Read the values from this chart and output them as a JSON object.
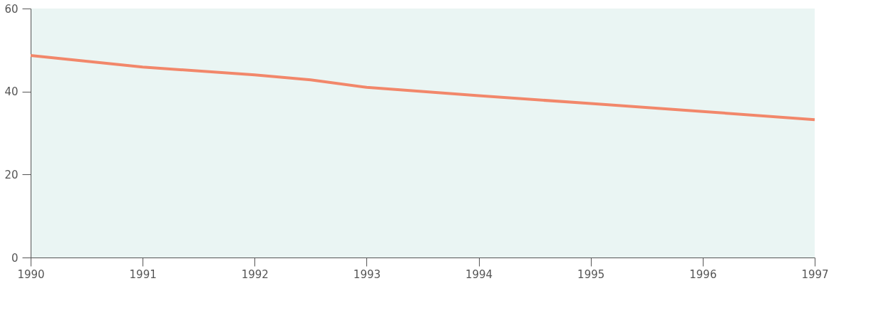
{
  "chart_data": {
    "type": "line",
    "x": [
      1990,
      1991,
      1992,
      1992.5,
      1993,
      1994,
      1995,
      1996,
      1997
    ],
    "series": [
      {
        "color": "#f2876a",
        "values": [
          48.7,
          45.9,
          44.0,
          42.8,
          41.0,
          39.0,
          37.1,
          35.2,
          33.2
        ]
      }
    ],
    "xlim": [
      1990,
      1997
    ],
    "xticks": [
      1990,
      1991,
      1992,
      1993,
      1994,
      1995,
      1996,
      1997
    ],
    "ylim": [
      0,
      60
    ],
    "yticks": [
      0,
      20,
      40,
      60
    ],
    "grid": false,
    "marker": "none",
    "line_style": "solid"
  }
}
